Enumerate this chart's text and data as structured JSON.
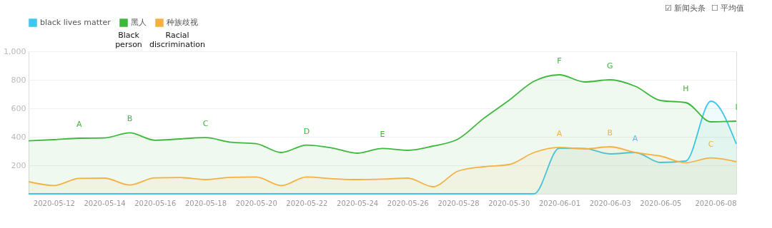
{
  "chart_data": {
    "type": "area",
    "x": [
      "2020-05-11",
      "2020-05-12",
      "2020-05-13",
      "2020-05-14",
      "2020-05-15",
      "2020-05-16",
      "2020-05-17",
      "2020-05-18",
      "2020-05-19",
      "2020-05-20",
      "2020-05-21",
      "2020-05-22",
      "2020-05-23",
      "2020-05-24",
      "2020-05-25",
      "2020-05-26",
      "2020-05-27",
      "2020-05-28",
      "2020-05-29",
      "2020-05-30",
      "2020-05-31",
      "2020-06-01",
      "2020-06-02",
      "2020-06-03",
      "2020-06-04",
      "2020-06-05",
      "2020-06-06",
      "2020-06-07",
      "2020-06-08"
    ],
    "series": [
      {
        "name": "black lives matter",
        "color": "#3ec6f0",
        "values": [
          0,
          0,
          0,
          0,
          0,
          0,
          0,
          0,
          0,
          0,
          0,
          0,
          0,
          0,
          0,
          0,
          0,
          0,
          0,
          0,
          0,
          320,
          318,
          280,
          290,
          220,
          230,
          650,
          350
        ]
      },
      {
        "name": "黑人",
        "color": "#3cb83c",
        "values": [
          372,
          380,
          390,
          392,
          428,
          376,
          385,
          394,
          362,
          352,
          290,
          342,
          322,
          285,
          318,
          305,
          335,
          385,
          528,
          655,
          790,
          835,
          785,
          800,
          755,
          655,
          640,
          505,
          510
        ]
      },
      {
        "name": "种族歧视",
        "color": "#f5b042",
        "values": [
          85,
          58,
          108,
          110,
          62,
          112,
          114,
          100,
          116,
          118,
          58,
          118,
          106,
          100,
          103,
          110,
          50,
          160,
          190,
          205,
          290,
          326,
          315,
          330,
          290,
          265,
          218,
          252,
          225
        ]
      }
    ],
    "xlim": [
      "2020-05-11",
      "2020-06-08"
    ],
    "xticks": [
      "2020-05-12",
      "2020-05-14",
      "2020-05-16",
      "2020-05-18",
      "2020-05-20",
      "2020-05-22",
      "2020-05-24",
      "2020-05-26",
      "2020-05-28",
      "2020-05-30",
      "2020-06-01",
      "2020-06-03",
      "2020-06-05",
      "2020-06-08"
    ],
    "ylim": [
      0,
      1000
    ],
    "yticks": [
      200,
      400,
      600,
      800,
      {
        "value": 1000,
        "label": "1,000"
      }
    ],
    "grid": "y",
    "legend": "top left",
    "annotations": [
      "Black person",
      "Racial discrimination",
      "☑ 新闻头条",
      "☐ 平均值",
      {
        "text": "A",
        "x": "2020-05-13",
        "y": 390
      },
      {
        "text": "B",
        "x": "2020-05-15",
        "y": 428
      },
      {
        "text": "C",
        "x": "2020-05-18",
        "y": 394
      },
      {
        "text": "D",
        "x": "2020-05-22",
        "y": 342
      },
      {
        "text": "E",
        "x": "2020-05-25",
        "y": 318
      },
      {
        "text": "F",
        "x": "2020-06-01",
        "y": 835
      },
      {
        "text": "G",
        "x": "2020-06-03",
        "y": 800
      },
      {
        "text": "H",
        "x": "2020-06-06",
        "y": 640
      },
      {
        "text": "I",
        "x": "2020-06-08",
        "y": 510
      },
      {
        "text": "A",
        "x": "2020-06-01",
        "y": 326
      },
      {
        "text": "B",
        "x": "2020-06-03",
        "y": 330
      },
      {
        "text": "C",
        "x": "2020-06-07",
        "y": 252
      },
      {
        "text": "A",
        "x": "2020-06-04",
        "y": 290
      }
    ]
  }
}
